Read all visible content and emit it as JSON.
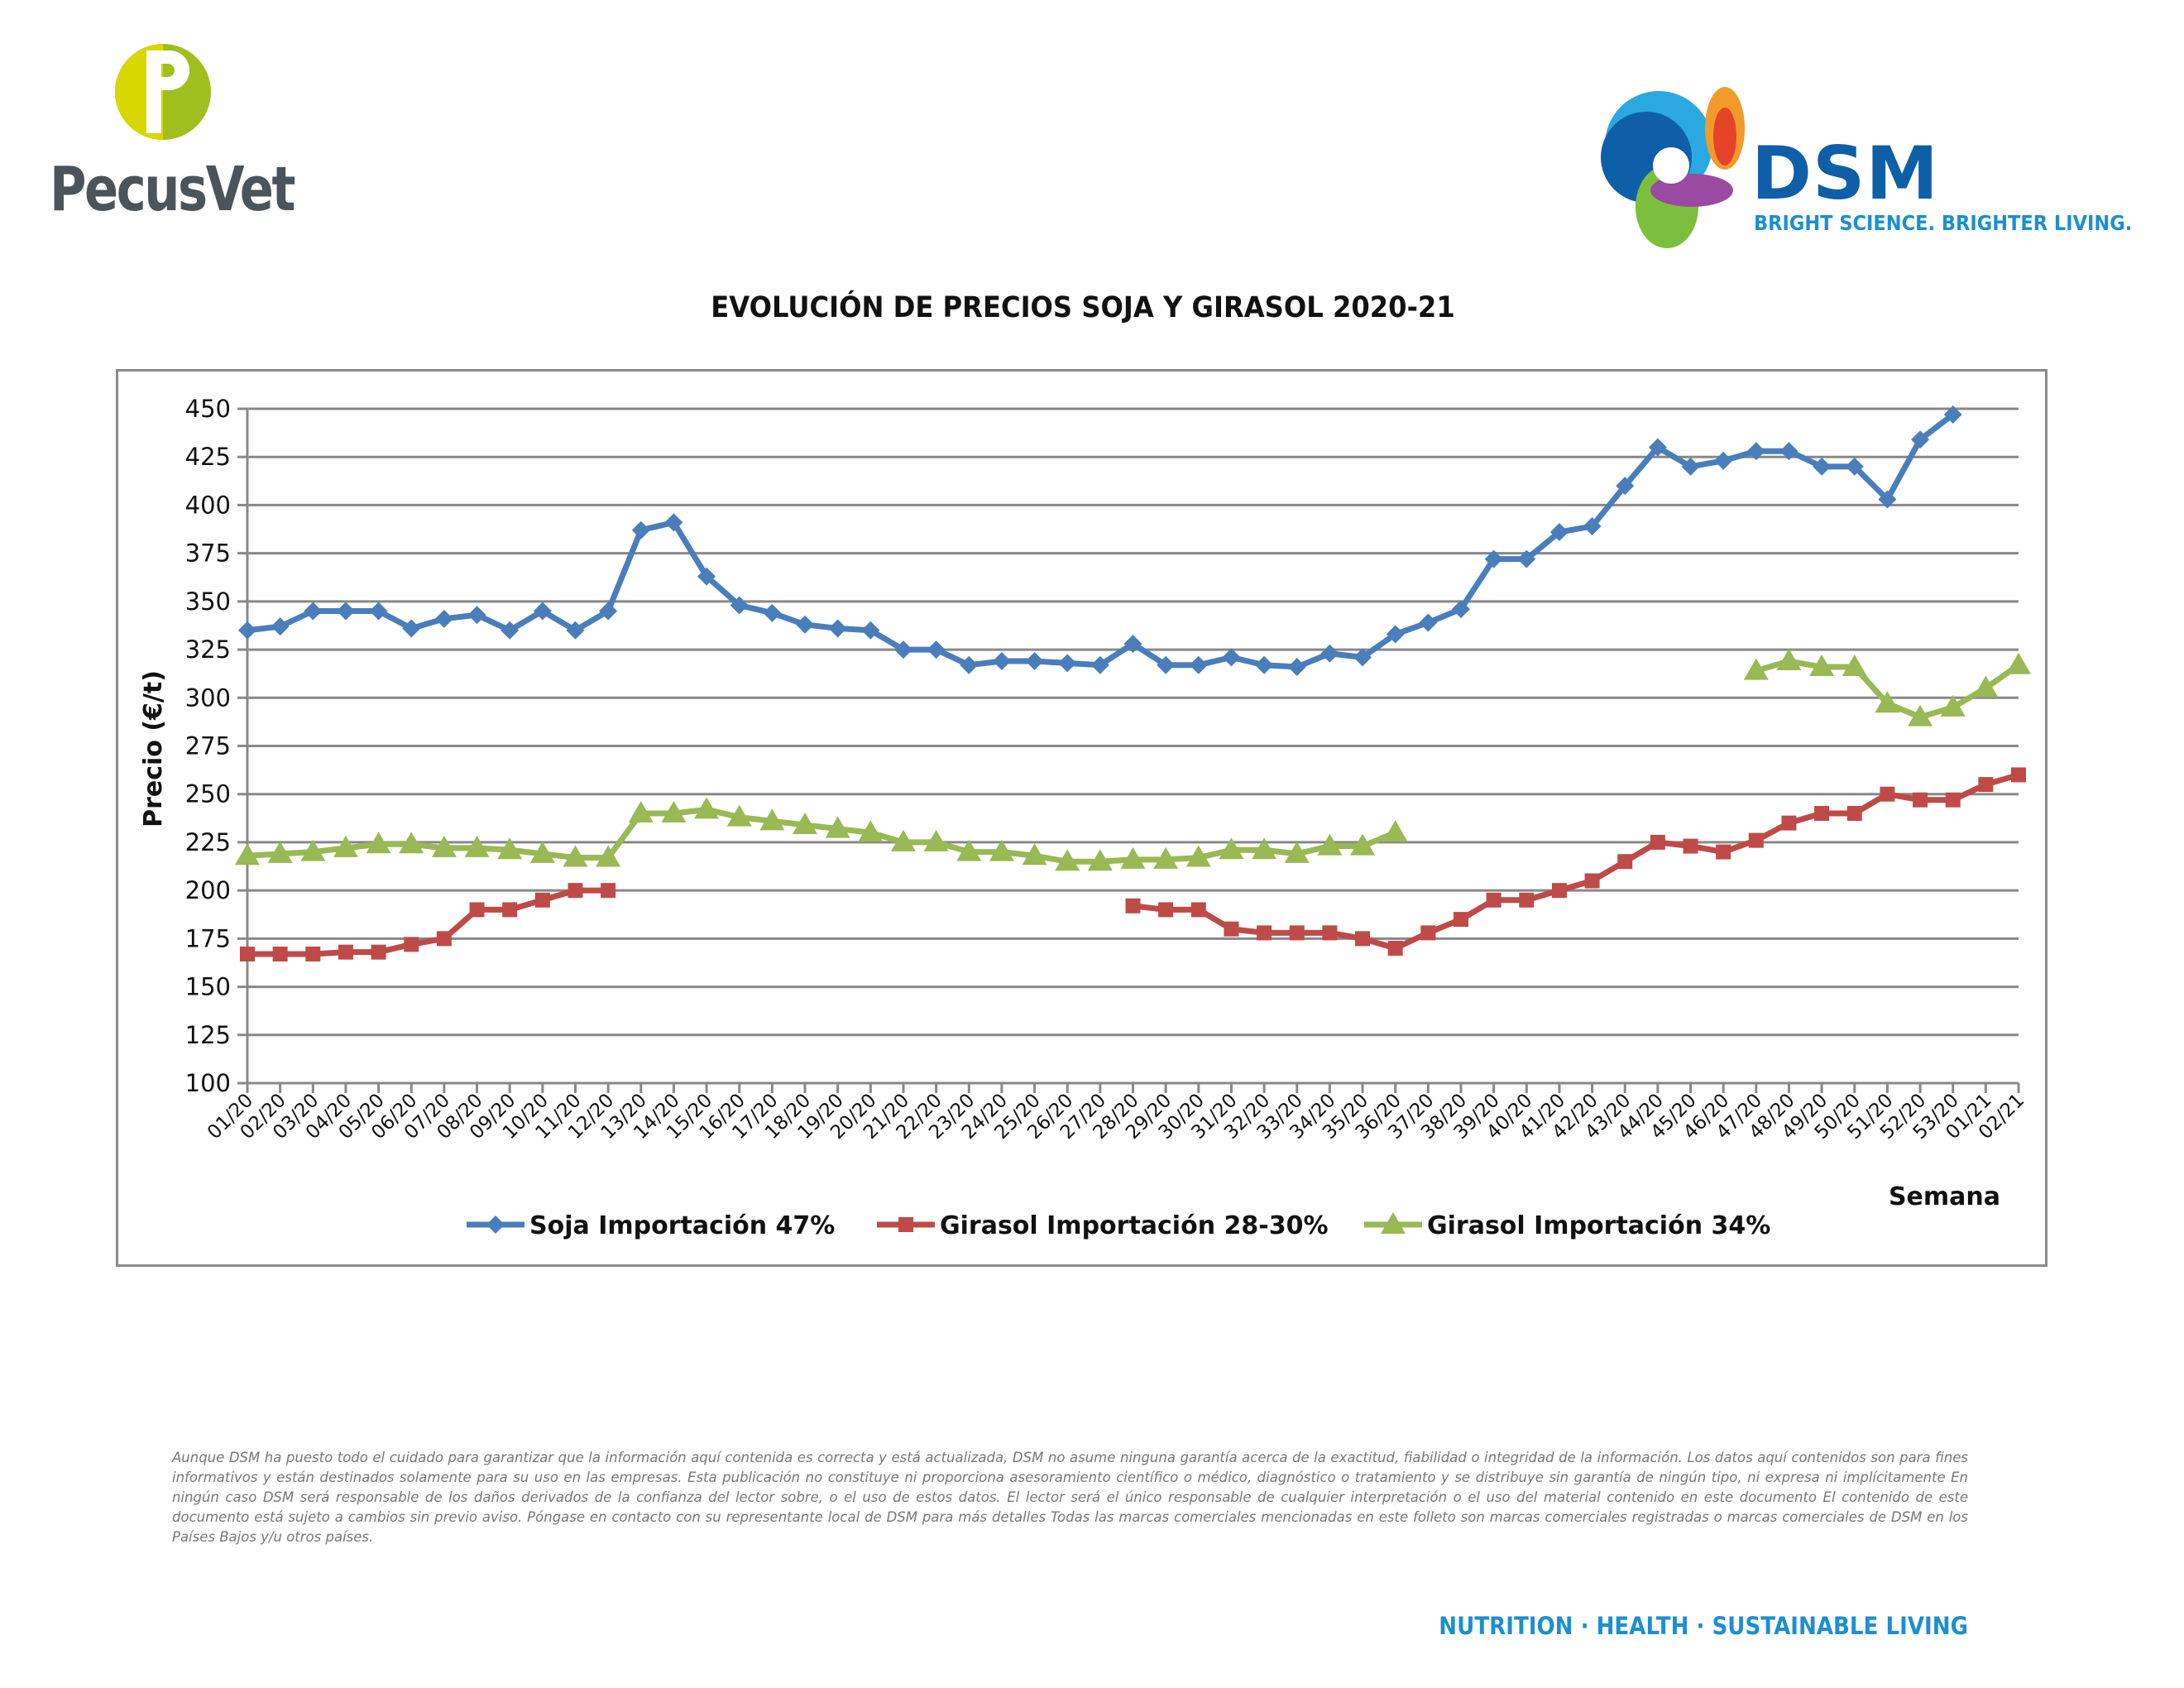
{
  "branding": {
    "left_logo_text": "PecusVet",
    "right_logo_text": "DSM",
    "right_logo_tagline": "BRIGHT SCIENCE. BRIGHTER LIVING.",
    "footer_tagline": "NUTRITION · HEALTH · SUSTAINABLE LIVING"
  },
  "disclaimer": "Aunque DSM ha puesto todo el cuidado para garantizar que la información aquí contenida es correcta y está actualizada, DSM no asume ninguna garantía acerca de la exactitud, fiabilidad o integridad de la información. Los datos aquí contenidos son para fines informativos y están destinados solamente para su uso en las empresas. Esta publicación no constituye ni proporciona asesoramiento científico o médico, diagnóstico o tratamiento y se distribuye sin garantía de ningún tipo, ni expresa ni implícitamente En ningún caso DSM será responsable de los daños derivados de la confianza del lector sobre, o el uso de estos datos. El lector será el único responsable de cualquier interpretación o el uso del material contenido en este documento El contenido de este documento está sujeto a cambios sin previo aviso. Póngase en contacto con su representante local de DSM para más detalles Todas las marcas comerciales mencionadas en este folleto son marcas comerciales registradas o marcas comerciales de DSM en los Países Bajos y/u otros países.",
  "chart_data": {
    "type": "line",
    "title": "EVOLUCIÓN DE PRECIOS SOJA Y GIRASOL 2020-21",
    "xlabel": "Semana",
    "ylabel": "Precio (€/t)",
    "ylim": [
      100,
      450
    ],
    "yticks": [
      100,
      125,
      150,
      175,
      200,
      225,
      250,
      275,
      300,
      325,
      350,
      375,
      400,
      425,
      450
    ],
    "grid": true,
    "legend_position": "bottom",
    "categories": [
      "01/20",
      "02/20",
      "03/20",
      "04/20",
      "05/20",
      "06/20",
      "07/20",
      "08/20",
      "09/20",
      "10/20",
      "11/20",
      "12/20",
      "13/20",
      "14/20",
      "15/20",
      "16/20",
      "17/20",
      "18/20",
      "19/20",
      "20/20",
      "21/20",
      "22/20",
      "23/20",
      "24/20",
      "25/20",
      "26/20",
      "27/20",
      "28/20",
      "29/20",
      "30/20",
      "31/20",
      "32/20",
      "33/20",
      "34/20",
      "35/20",
      "36/20",
      "37/20",
      "38/20",
      "39/20",
      "40/20",
      "41/20",
      "42/20",
      "43/20",
      "44/20",
      "45/20",
      "46/20",
      "47/20",
      "48/20",
      "49/20",
      "50/20",
      "51/20",
      "52/20",
      "53/20",
      "01/21",
      "02/21"
    ],
    "series": [
      {
        "name": "Soja Importación 47%",
        "color": "#4a7ebb",
        "marker": "diamond",
        "values": [
          335,
          337,
          345,
          345,
          345,
          336,
          341,
          343,
          335,
          345,
          335,
          345,
          387,
          391,
          363,
          348,
          344,
          338,
          336,
          335,
          325,
          325,
          317,
          319,
          319,
          318,
          317,
          328,
          317,
          317,
          321,
          317,
          316,
          323,
          321,
          333,
          339,
          346,
          372,
          372,
          386,
          389,
          410,
          430,
          420,
          423,
          428,
          428,
          420,
          420,
          403,
          434,
          447,
          null,
          null
        ]
      },
      {
        "name": "Girasol Importación 28-30%",
        "color": "#be4b48",
        "marker": "square",
        "values": [
          167,
          167,
          167,
          168,
          168,
          172,
          175,
          190,
          190,
          195,
          200,
          200,
          null,
          null,
          null,
          null,
          null,
          null,
          null,
          null,
          null,
          null,
          null,
          null,
          null,
          null,
          null,
          192,
          190,
          190,
          180,
          178,
          178,
          178,
          175,
          170,
          178,
          185,
          195,
          195,
          200,
          205,
          215,
          225,
          223,
          220,
          226,
          235,
          240,
          240,
          250,
          247,
          247,
          255,
          260
        ]
      },
      {
        "name": "Girasol Importación 34%",
        "color": "#98b954",
        "marker": "triangle",
        "values": [
          218,
          219,
          220,
          222,
          224,
          224,
          222,
          222,
          221,
          219,
          217,
          217,
          240,
          240,
          242,
          238,
          236,
          234,
          232,
          230,
          225,
          225,
          220,
          220,
          218,
          215,
          215,
          216,
          216,
          217,
          221,
          221,
          219,
          223,
          223,
          230,
          null,
          null,
          null,
          null,
          null,
          null,
          null,
          null,
          null,
          null,
          314,
          319,
          316,
          316,
          297,
          290,
          295,
          305,
          317
        ]
      }
    ]
  }
}
